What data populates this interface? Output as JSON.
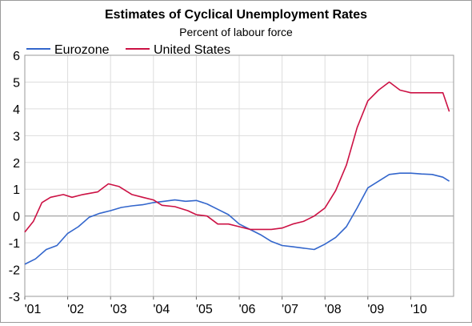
{
  "chart_data": {
    "type": "line",
    "title": "Estimates of Cyclical Unemployment Rates",
    "subtitle": "Percent of labour force",
    "ylim": [
      -3,
      6
    ],
    "yticks": [
      -3,
      -2,
      -1,
      0,
      1,
      2,
      3,
      4,
      5,
      6
    ],
    "xlim": [
      2001.0,
      2011.0
    ],
    "xtick_labels": [
      "'01",
      "'02",
      "'03",
      "'04",
      "'05",
      "'06",
      "'07",
      "'08",
      "'09",
      "'10"
    ],
    "grid": true,
    "legend": "top-left",
    "series": [
      {
        "name": "Eurozone",
        "color": "#3366cc",
        "x": [
          2001.0,
          2001.25,
          2001.5,
          2001.75,
          2002.0,
          2002.25,
          2002.5,
          2002.75,
          2003.0,
          2003.25,
          2003.5,
          2003.75,
          2004.0,
          2004.25,
          2004.5,
          2004.75,
          2005.0,
          2005.25,
          2005.5,
          2005.75,
          2006.0,
          2006.25,
          2006.5,
          2006.75,
          2007.0,
          2007.25,
          2007.5,
          2007.75,
          2008.0,
          2008.25,
          2008.5,
          2008.75,
          2009.0,
          2009.25,
          2009.5,
          2009.75,
          2010.0,
          2010.25,
          2010.5,
          2010.75,
          2010.9
        ],
        "y": [
          -1.8,
          -1.6,
          -1.25,
          -1.1,
          -0.65,
          -0.4,
          -0.05,
          0.1,
          0.2,
          0.32,
          0.38,
          0.42,
          0.5,
          0.55,
          0.6,
          0.55,
          0.58,
          0.45,
          0.25,
          0.05,
          -0.3,
          -0.5,
          -0.7,
          -0.95,
          -1.1,
          -1.15,
          -1.2,
          -1.25,
          -1.05,
          -0.8,
          -0.4,
          0.3,
          1.05,
          1.3,
          1.55,
          1.6,
          1.6,
          1.57,
          1.55,
          1.45,
          1.3
        ]
      },
      {
        "name": "United States",
        "color": "#cc1144",
        "x": [
          2001.0,
          2001.2,
          2001.4,
          2001.6,
          2001.9,
          2002.1,
          2002.35,
          2002.7,
          2002.95,
          2003.2,
          2003.5,
          2003.75,
          2004.0,
          2004.2,
          2004.5,
          2004.8,
          2005.0,
          2005.25,
          2005.5,
          2005.75,
          2006.0,
          2006.25,
          2006.5,
          2006.75,
          2007.0,
          2007.25,
          2007.5,
          2007.75,
          2008.0,
          2008.25,
          2008.5,
          2008.75,
          2009.0,
          2009.25,
          2009.5,
          2009.75,
          2010.0,
          2010.25,
          2010.5,
          2010.75,
          2010.9
        ],
        "y": [
          -0.6,
          -0.2,
          0.5,
          0.7,
          0.8,
          0.7,
          0.8,
          0.9,
          1.2,
          1.1,
          0.8,
          0.7,
          0.6,
          0.4,
          0.35,
          0.2,
          0.05,
          0.0,
          -0.3,
          -0.3,
          -0.4,
          -0.5,
          -0.5,
          -0.5,
          -0.45,
          -0.3,
          -0.2,
          0.0,
          0.3,
          0.95,
          1.9,
          3.3,
          4.3,
          4.7,
          5.0,
          4.7,
          4.6,
          4.6,
          4.6,
          4.6,
          3.9
        ]
      }
    ]
  }
}
